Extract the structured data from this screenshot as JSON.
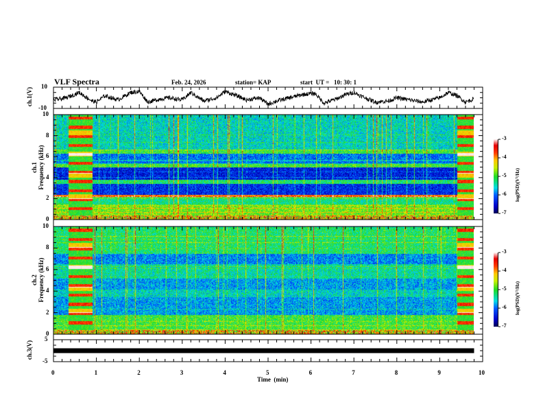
{
  "header": {
    "title": "VLF Spectra",
    "date": "Feb. 24, 2026",
    "station": "station= KAP",
    "start_ut": "start  UT =   10: 30: 1"
  },
  "chart_data": [
    {
      "id": "ch1_waveform",
      "type": "line",
      "ylabel": "ch.1(V)",
      "ylim": [
        -10,
        10
      ],
      "yticks": [
        "10",
        "-10"
      ],
      "xlim": [
        0,
        10
      ],
      "data_end_min": 9.8,
      "description": "Noisy voltage trace",
      "x": [
        0,
        0.3,
        0.6,
        0.9,
        1.0,
        1.2,
        1.5,
        1.8,
        2.0,
        2.2,
        2.5,
        2.7,
        3.0,
        3.2,
        3.5,
        3.8,
        4.0,
        4.2,
        4.5,
        4.8,
        5.0,
        5.2,
        5.5,
        5.8,
        6.0,
        6.1,
        6.3,
        6.6,
        6.8,
        7.0,
        7.2,
        7.5,
        7.8,
        8.0,
        8.3,
        8.6,
        8.8,
        9.0,
        9.2,
        9.4,
        9.6,
        9.8
      ],
      "y": [
        -2,
        0,
        5,
        -3,
        -4,
        2,
        -2,
        5,
        6,
        -4,
        -1,
        0,
        -2,
        5,
        -3,
        0,
        6,
        3,
        -2,
        0,
        -6,
        -3,
        0,
        3,
        4,
        4,
        -5,
        -1,
        3,
        5,
        1,
        -4,
        -3,
        0,
        -2,
        -4,
        -2,
        0,
        5,
        2,
        -4,
        -1
      ]
    },
    {
      "id": "ch1_spectrogram",
      "type": "heatmap",
      "ylabel": "ch.1",
      "ylabel2": "Frequency  (kHz)",
      "ylim": [
        0,
        10
      ],
      "yticks": [
        "0",
        "2",
        "4",
        "6",
        "8",
        "10"
      ],
      "xlim": [
        0,
        10
      ],
      "data_end_min": 9.8,
      "colorbar": {
        "label": "log(PSD)(V²/Hz)",
        "range": [
          -7,
          -3
        ],
        "ticks": [
          "-3",
          "-4",
          "-5",
          "-6",
          "-7"
        ]
      },
      "bands_kHz_logpsd": [
        {
          "f": [
            0,
            0.5
          ],
          "v": -4.6
        },
        {
          "f": [
            0.5,
            1.5
          ],
          "v": -4.8
        },
        {
          "f": [
            1.5,
            2.2
          ],
          "v": -5.3
        },
        {
          "f": [
            2.2,
            2.4
          ],
          "v": -3.9
        },
        {
          "f": [
            2.4,
            3.4
          ],
          "v": -6.3
        },
        {
          "f": [
            3.4,
            3.8
          ],
          "v": -5.2
        },
        {
          "f": [
            3.8,
            5.0
          ],
          "v": -6.4
        },
        {
          "f": [
            5.0,
            5.3
          ],
          "v": -5.0
        },
        {
          "f": [
            5.3,
            6.3
          ],
          "v": -6.0
        },
        {
          "f": [
            6.3,
            6.7
          ],
          "v": -5.0
        },
        {
          "f": [
            6.7,
            10
          ],
          "v": -5.5
        }
      ],
      "bursts_min": [
        [
          0.35,
          0.9
        ],
        [
          9.4,
          9.8
        ]
      ]
    },
    {
      "id": "ch2_spectrogram",
      "type": "heatmap",
      "ylabel": "ch.2",
      "ylabel2": "Frequency  (kHz)",
      "ylim": [
        0,
        10
      ],
      "yticks": [
        "0",
        "2",
        "4",
        "6",
        "8",
        "10"
      ],
      "xlim": [
        0,
        10
      ],
      "data_end_min": 9.8,
      "colorbar": {
        "label": "log(PSD)(V²/Hz)",
        "range": [
          -7,
          -3
        ],
        "ticks": [
          "-3",
          "-4",
          "-5",
          "-6",
          "-7"
        ]
      },
      "bands_kHz_logpsd": [
        {
          "f": [
            0,
            0.5
          ],
          "v": -4.5
        },
        {
          "f": [
            0.5,
            1.8
          ],
          "v": -5.0
        },
        {
          "f": [
            1.8,
            3.5
          ],
          "v": -5.8
        },
        {
          "f": [
            3.5,
            4.2
          ],
          "v": -5.5
        },
        {
          "f": [
            4.2,
            5.2
          ],
          "v": -5.8
        },
        {
          "f": [
            5.2,
            6.5
          ],
          "v": -5.4
        },
        {
          "f": [
            6.5,
            7.5
          ],
          "v": -5.9
        },
        {
          "f": [
            7.5,
            10
          ],
          "v": -5.2
        }
      ],
      "bursts_min": [
        [
          0.35,
          0.9
        ],
        [
          9.4,
          9.8
        ]
      ]
    },
    {
      "id": "ch3_waveform",
      "type": "line",
      "ylabel": "ch.3(V)",
      "ylim": [
        -5,
        5
      ],
      "yticks": [
        "5",
        "-5"
      ],
      "xlim": [
        0,
        10
      ],
      "data_end_min": 9.8,
      "constant_value": 0
    }
  ],
  "x_axis": {
    "label": "Time  (min)",
    "ticks": [
      "0",
      "1",
      "2",
      "3",
      "4",
      "5",
      "6",
      "7",
      "8",
      "9",
      "10"
    ]
  }
}
